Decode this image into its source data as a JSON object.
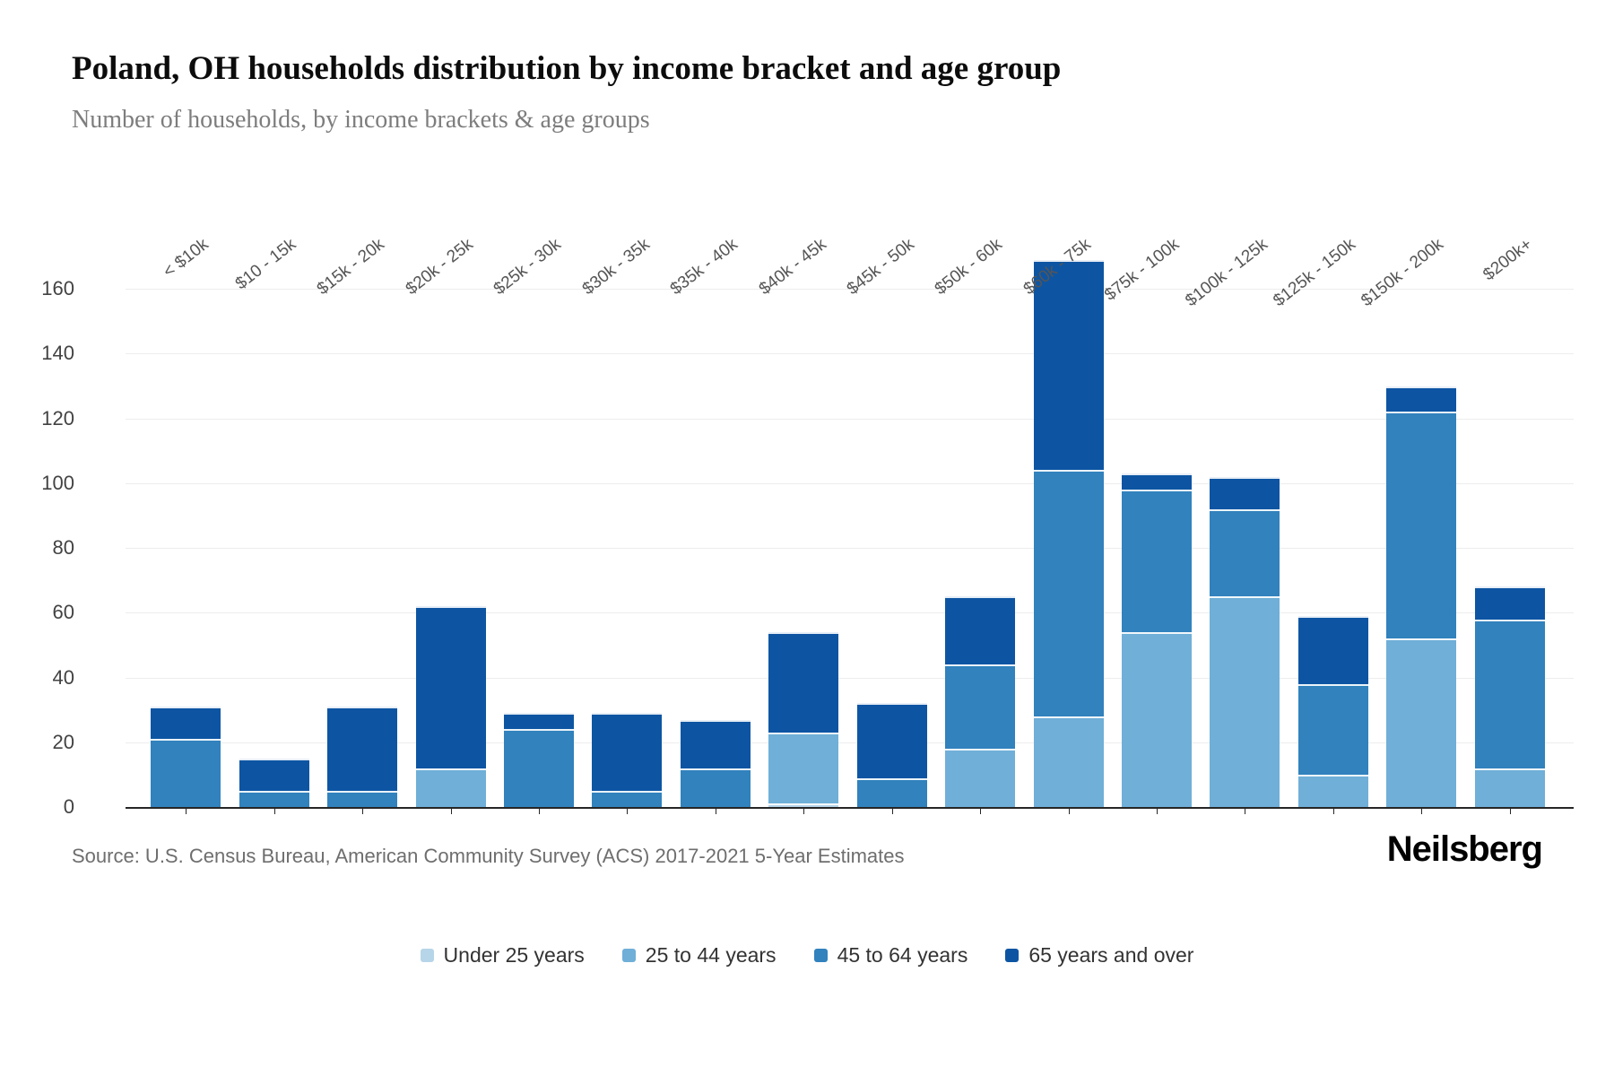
{
  "header": {
    "title": "Poland, OH households distribution by income bracket and age group",
    "subtitle": "Number of households, by income brackets & age groups"
  },
  "footer": {
    "source": "Source: U.S. Census Bureau, American Community Survey (ACS) 2017-2021 5-Year Estimates",
    "brand": "Neilsberg"
  },
  "chart_data": {
    "type": "bar",
    "stacked": true,
    "title": "Poland, OH households distribution by income bracket and age group",
    "xlabel": "",
    "ylabel": "",
    "ylim": [
      0,
      180
    ],
    "yticks": [
      0,
      20,
      40,
      60,
      80,
      100,
      120,
      140,
      160
    ],
    "grid": true,
    "legend_position": "bottom",
    "categories": [
      "< $10k",
      "$10 - 15k",
      "$15k - 20k",
      "$20k - 25k",
      "$25k - 30k",
      "$30k - 35k",
      "$35k - 40k",
      "$40k - 45k",
      "$45k - 50k",
      "$50k - 60k",
      "$60k - 75k",
      "$75k - 100k",
      "$100k - 125k",
      "$125k - 150k",
      "$150k - 200k",
      "$200k+"
    ],
    "series": [
      {
        "name": "Under 25 years",
        "color": "#b7d5e9",
        "values": [
          0,
          0,
          0,
          0,
          0,
          0,
          0,
          1,
          0,
          0,
          0,
          0,
          0,
          0,
          0,
          0
        ]
      },
      {
        "name": "25 to 44 years",
        "color": "#6fafd8",
        "values": [
          0,
          0,
          0,
          12,
          0,
          0,
          0,
          22,
          0,
          18,
          28,
          54,
          65,
          10,
          52,
          12
        ]
      },
      {
        "name": "45 to 64 years",
        "color": "#3182bd",
        "values": [
          21,
          5,
          5,
          0,
          24,
          5,
          12,
          0,
          9,
          26,
          76,
          44,
          27,
          28,
          70,
          46
        ]
      },
      {
        "name": "65 years and over",
        "color": "#0d55a3",
        "values": [
          10,
          10,
          26,
          50,
          5,
          24,
          15,
          31,
          23,
          21,
          65,
          5,
          10,
          21,
          8,
          10
        ]
      }
    ],
    "totals": [
      31,
      15,
      31,
      62,
      29,
      29,
      27,
      54,
      32,
      65,
      169,
      103,
      102,
      59,
      130,
      68
    ]
  }
}
